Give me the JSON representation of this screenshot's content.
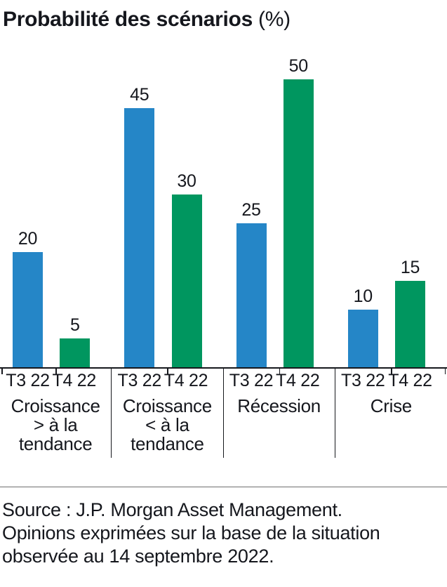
{
  "title": {
    "main": "Probabilité des scénarios",
    "suffix": " (%)"
  },
  "chart_data": {
    "type": "bar",
    "categories": [
      "Croissance\n> à la\ntendance",
      "Croissance\n< à la\ntendance",
      "Récession",
      "Crise"
    ],
    "series": [
      {
        "name": "T3 22",
        "color": "#2586c7",
        "values": [
          20,
          45,
          25,
          10
        ]
      },
      {
        "name": "T4 22",
        "color": "#00965f",
        "values": [
          5,
          30,
          50,
          15
        ]
      }
    ],
    "title": "Probabilité des scénarios (%)",
    "xlabel": "",
    "ylabel": "",
    "ylim": [
      0,
      50
    ],
    "grid": false,
    "legend_position": "none",
    "value_labels_shown": true
  },
  "source": {
    "lines": [
      "Source : J.P. Morgan Asset Management.",
      "Opinions exprimées sur la base de la situation",
      "observée au 14 septembre 2022."
    ]
  },
  "colors": {
    "bar_t3": "#2586c7",
    "bar_t4": "#00965f",
    "text": "#15171d",
    "axis": "#16181d",
    "divider": "#6e6e6e",
    "background": "#ffffff"
  }
}
